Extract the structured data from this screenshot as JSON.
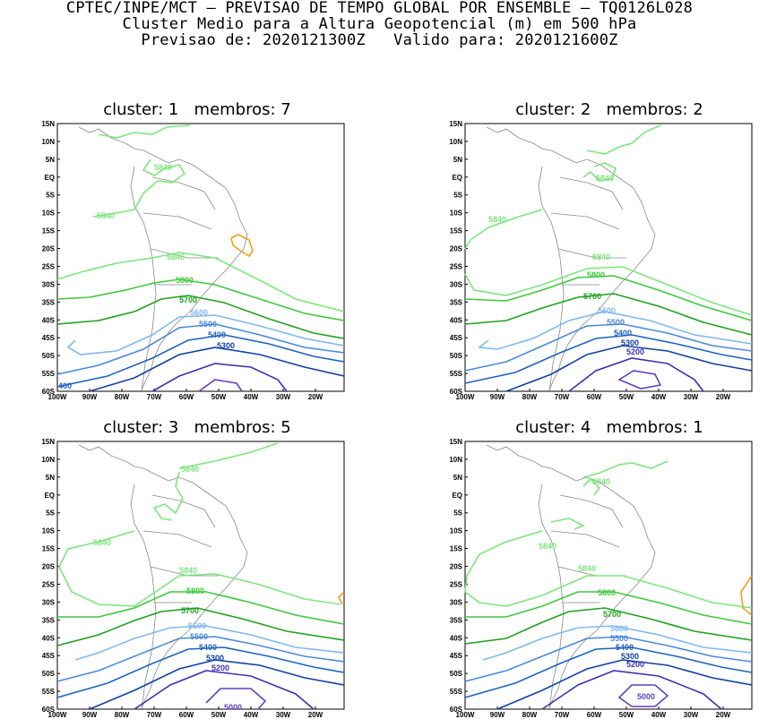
{
  "header": {
    "line1": "CPTEC/INPE/MCT – PREVISAO DE TEMPO GLOBAL POR ENSEMBLE – TQ0126L028",
    "line2": "Cluster Medio para a Altura Geopotencial (m) em 500 hPa",
    "line3": "Previsao de: 2020121300Z   Valido para: 2020121600Z"
  },
  "axes": {
    "lat_labels": [
      "15N",
      "10N",
      "5N",
      "EQ",
      "5S",
      "10S",
      "15S",
      "20S",
      "25S",
      "30S",
      "35S",
      "40S",
      "45S",
      "50S",
      "55S",
      "60S"
    ],
    "lon_labels": [
      "100W",
      "90W",
      "80W",
      "70W",
      "60W",
      "50W",
      "40W",
      "30W",
      "20W"
    ]
  },
  "colors": {
    "c5840": "#7de57d",
    "c5800": "#3ec83e",
    "c5700": "#1ea01e",
    "c5600": "#7fb8ee",
    "c5500": "#4a8ad8",
    "c5400": "#1f62c0",
    "c5300": "#1040a0",
    "c5200": "#4030b0",
    "c5000": "#6040c0",
    "warm": "#f0a020",
    "coast": "#888888"
  },
  "panels": [
    {
      "title": "cluster: 1   membros: 7",
      "labels": {
        "a": "5840",
        "b": "5840",
        "c": "5840",
        "d": "5800",
        "e": "5700",
        "f": "5600",
        "g": "5500",
        "h": "5400",
        "i": "5300",
        "j": "400"
      }
    },
    {
      "title": "cluster: 2   membros: 2",
      "labels": {
        "a": "5840",
        "b": "5840",
        "c": "5840",
        "d": "5800",
        "e": "5700",
        "f": "5600",
        "g": "5500",
        "h": "5400",
        "i": "5300",
        "j": "5200"
      }
    },
    {
      "title": "cluster: 3   membros: 5",
      "labels": {
        "a": "5840",
        "b": "5840",
        "c": "5840",
        "d": "5800",
        "e": "5700",
        "f": "5600",
        "g": "5500",
        "h": "5400",
        "i": "5300",
        "j": "5200",
        "k": "5000"
      }
    },
    {
      "title": "cluster: 4   membros: 1",
      "labels": {
        "a": "5840",
        "b": "5840",
        "c": "5840",
        "d": "5800",
        "e": "5700",
        "f": "5600",
        "g": "5500",
        "h": "5400",
        "i": "5300",
        "j": "5200",
        "k": "5000"
      }
    }
  ]
}
